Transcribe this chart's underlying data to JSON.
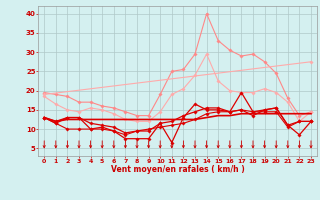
{
  "x": [
    0,
    1,
    2,
    3,
    4,
    5,
    6,
    7,
    8,
    9,
    10,
    11,
    12,
    13,
    14,
    15,
    16,
    17,
    18,
    19,
    20,
    21,
    22,
    23
  ],
  "series": [
    {
      "color": "#ff8888",
      "lw": 0.8,
      "marker": "D",
      "ms": 1.8,
      "y": [
        19.5,
        19.0,
        18.5,
        17.0,
        17.0,
        16.0,
        15.5,
        14.5,
        13.5,
        13.5,
        19.0,
        25.0,
        25.5,
        29.5,
        40.0,
        33.0,
        30.5,
        29.0,
        29.5,
        27.5,
        24.5,
        18.0,
        13.5,
        14.5
      ]
    },
    {
      "color": "#ffaaaa",
      "lw": 0.8,
      "marker": "D",
      "ms": 1.8,
      "y": [
        18.5,
        16.5,
        15.0,
        14.5,
        15.5,
        15.0,
        14.0,
        12.5,
        12.0,
        12.0,
        14.5,
        19.0,
        20.5,
        24.0,
        29.5,
        22.5,
        20.0,
        19.5,
        19.5,
        20.5,
        19.5,
        17.0,
        12.0,
        14.5
      ]
    },
    {
      "color": "#ffaaaa",
      "lw": 0.8,
      "marker": "D",
      "ms": 1.8,
      "y": [
        19.0,
        null,
        null,
        null,
        null,
        null,
        null,
        null,
        null,
        null,
        null,
        null,
        null,
        null,
        null,
        null,
        null,
        null,
        null,
        null,
        null,
        null,
        null,
        27.5
      ]
    },
    {
      "color": "#dd0000",
      "lw": 0.9,
      "marker": "D",
      "ms": 1.8,
      "y": [
        13.0,
        11.5,
        13.0,
        13.0,
        10.0,
        10.5,
        9.5,
        7.5,
        7.5,
        7.5,
        11.5,
        6.5,
        13.0,
        16.5,
        15.0,
        15.0,
        14.5,
        19.5,
        14.5,
        15.0,
        15.5,
        11.0,
        8.5,
        12.0
      ]
    },
    {
      "color": "#dd0000",
      "lw": 0.9,
      "marker": "D",
      "ms": 1.8,
      "y": [
        13.0,
        12.0,
        13.0,
        13.0,
        11.5,
        11.0,
        10.5,
        9.0,
        9.5,
        9.5,
        11.5,
        12.0,
        13.5,
        14.5,
        15.5,
        15.5,
        14.5,
        15.0,
        13.5,
        15.0,
        15.5,
        11.0,
        12.0,
        12.0
      ]
    },
    {
      "color": "#dd0000",
      "lw": 1.2,
      "marker": null,
      "ms": 0,
      "y": [
        13.0,
        12.0,
        12.5,
        12.5,
        12.5,
        12.5,
        12.5,
        12.5,
        12.5,
        12.5,
        12.5,
        12.5,
        12.5,
        12.5,
        13.0,
        13.5,
        13.5,
        14.0,
        14.0,
        14.0,
        14.0,
        14.0,
        14.0,
        14.0
      ]
    },
    {
      "color": "#dd0000",
      "lw": 0.8,
      "marker": "D",
      "ms": 1.8,
      "y": [
        13.0,
        11.5,
        10.0,
        10.0,
        10.0,
        10.0,
        9.5,
        8.5,
        9.5,
        10.0,
        10.5,
        11.0,
        11.5,
        12.5,
        14.0,
        14.5,
        14.5,
        15.0,
        14.5,
        14.5,
        14.5,
        10.5,
        12.0,
        12.0
      ]
    }
  ],
  "wind_arrows_x": [
    0,
    1,
    2,
    3,
    4,
    5,
    6,
    7,
    8,
    9,
    10,
    11,
    12,
    13,
    14,
    15,
    16,
    17,
    18,
    19,
    20,
    21,
    22,
    23
  ],
  "ylim": [
    3,
    42
  ],
  "yticks": [
    5,
    10,
    15,
    20,
    25,
    30,
    35,
    40
  ],
  "xlim": [
    -0.5,
    23.5
  ],
  "xlabel": "Vent moyen/en rafales ( km/h )",
  "bg_color": "#d4f0f0",
  "grid_color": "#b0c8c8",
  "text_color": "#cc0000",
  "figsize": [
    3.2,
    2.0
  ],
  "dpi": 100
}
